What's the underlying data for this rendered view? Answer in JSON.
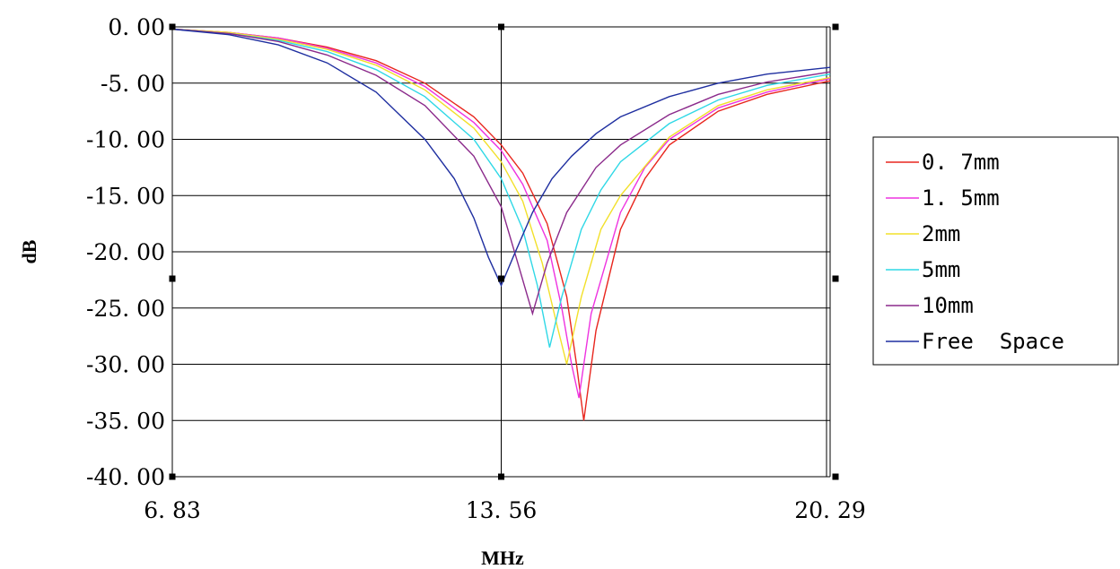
{
  "chart_data": {
    "type": "line",
    "xlabel": "MHz",
    "ylabel": "dB",
    "xlim": [
      6.83,
      20.29
    ],
    "ylim": [
      -40,
      0
    ],
    "x_tick_labels": [
      "6. 83",
      "13. 56",
      "20. 29"
    ],
    "y_tick_labels": [
      "0. 00",
      "-5. 00",
      "-10. 00",
      "-15. 00",
      "-20. 00",
      "-25. 00",
      "-30. 00",
      "-35. 00",
      "-40. 00"
    ],
    "grid": true,
    "legend_position": "right",
    "series": [
      {
        "name": "0. 7mm",
        "color": "#e8261e",
        "x": [
          6.83,
          8.0,
          9.0,
          10.0,
          11.0,
          12.0,
          13.0,
          13.56,
          14.0,
          14.5,
          14.9,
          15.1,
          15.25,
          15.5,
          16.0,
          16.5,
          17.0,
          18.0,
          19.0,
          20.29
        ],
        "y": [
          -0.2,
          -0.5,
          -1.0,
          -1.8,
          -3.0,
          -5.0,
          -8.0,
          -10.5,
          -13.0,
          -17.5,
          -24.0,
          -30.0,
          -35.0,
          -27.0,
          -18.0,
          -13.5,
          -10.5,
          -7.5,
          -6.0,
          -4.8
        ]
      },
      {
        "name": "1. 5mm",
        "color": "#ee33e0",
        "x": [
          6.83,
          8.0,
          9.0,
          10.0,
          11.0,
          12.0,
          13.0,
          13.56,
          14.0,
          14.5,
          14.8,
          15.0,
          15.15,
          15.4,
          16.0,
          16.5,
          17.0,
          18.0,
          19.0,
          20.29
        ],
        "y": [
          -0.2,
          -0.5,
          -1.0,
          -1.9,
          -3.2,
          -5.3,
          -8.5,
          -11.0,
          -14.0,
          -19.0,
          -25.0,
          -30.0,
          -33.0,
          -25.5,
          -16.5,
          -12.5,
          -10.0,
          -7.2,
          -5.8,
          -4.6
        ]
      },
      {
        "name": "2mm",
        "color": "#f2e02a",
        "x": [
          6.83,
          8.0,
          9.0,
          10.0,
          11.0,
          12.0,
          13.0,
          13.56,
          14.0,
          14.4,
          14.7,
          14.9,
          15.2,
          15.6,
          16.0,
          17.0,
          18.0,
          19.0,
          20.29
        ],
        "y": [
          -0.2,
          -0.5,
          -1.1,
          -2.0,
          -3.4,
          -5.6,
          -9.0,
          -12.0,
          -15.5,
          -21.0,
          -26.5,
          -30.0,
          -24.0,
          -18.0,
          -15.0,
          -9.8,
          -7.0,
          -5.6,
          -4.5
        ]
      },
      {
        "name": "5mm",
        "color": "#2fd8e6",
        "x": [
          6.83,
          8.0,
          9.0,
          10.0,
          11.0,
          12.0,
          13.0,
          13.56,
          14.0,
          14.3,
          14.55,
          14.8,
          15.2,
          15.6,
          16.0,
          17.0,
          18.0,
          19.0,
          20.29
        ],
        "y": [
          -0.2,
          -0.6,
          -1.2,
          -2.2,
          -3.8,
          -6.2,
          -10.0,
          -13.5,
          -18.0,
          -23.0,
          -28.5,
          -24.0,
          -18.0,
          -14.5,
          -12.0,
          -8.6,
          -6.5,
          -5.2,
          -4.2
        ]
      },
      {
        "name": "10mm",
        "color": "#8b2a8b",
        "x": [
          6.83,
          8.0,
          9.0,
          10.0,
          11.0,
          12.0,
          13.0,
          13.56,
          13.9,
          14.2,
          14.5,
          14.9,
          15.5,
          16.0,
          17.0,
          18.0,
          19.0,
          20.29
        ],
        "y": [
          -0.2,
          -0.6,
          -1.3,
          -2.5,
          -4.3,
          -7.0,
          -11.5,
          -16.0,
          -21.0,
          -25.5,
          -21.0,
          -16.5,
          -12.5,
          -10.5,
          -7.8,
          -6.0,
          -4.9,
          -4.0
        ]
      },
      {
        "name": "Free  Space",
        "color": "#1f2fa0",
        "x": [
          6.83,
          8.0,
          9.0,
          10.0,
          11.0,
          12.0,
          12.6,
          13.0,
          13.3,
          13.56,
          13.8,
          14.2,
          14.6,
          15.0,
          15.5,
          16.0,
          17.0,
          18.0,
          19.0,
          20.29
        ],
        "y": [
          -0.2,
          -0.7,
          -1.6,
          -3.2,
          -5.8,
          -10.0,
          -13.5,
          -17.0,
          -20.5,
          -23.0,
          -20.5,
          -16.5,
          -13.5,
          -11.5,
          -9.5,
          -8.0,
          -6.2,
          -5.0,
          -4.2,
          -3.6
        ]
      }
    ]
  }
}
